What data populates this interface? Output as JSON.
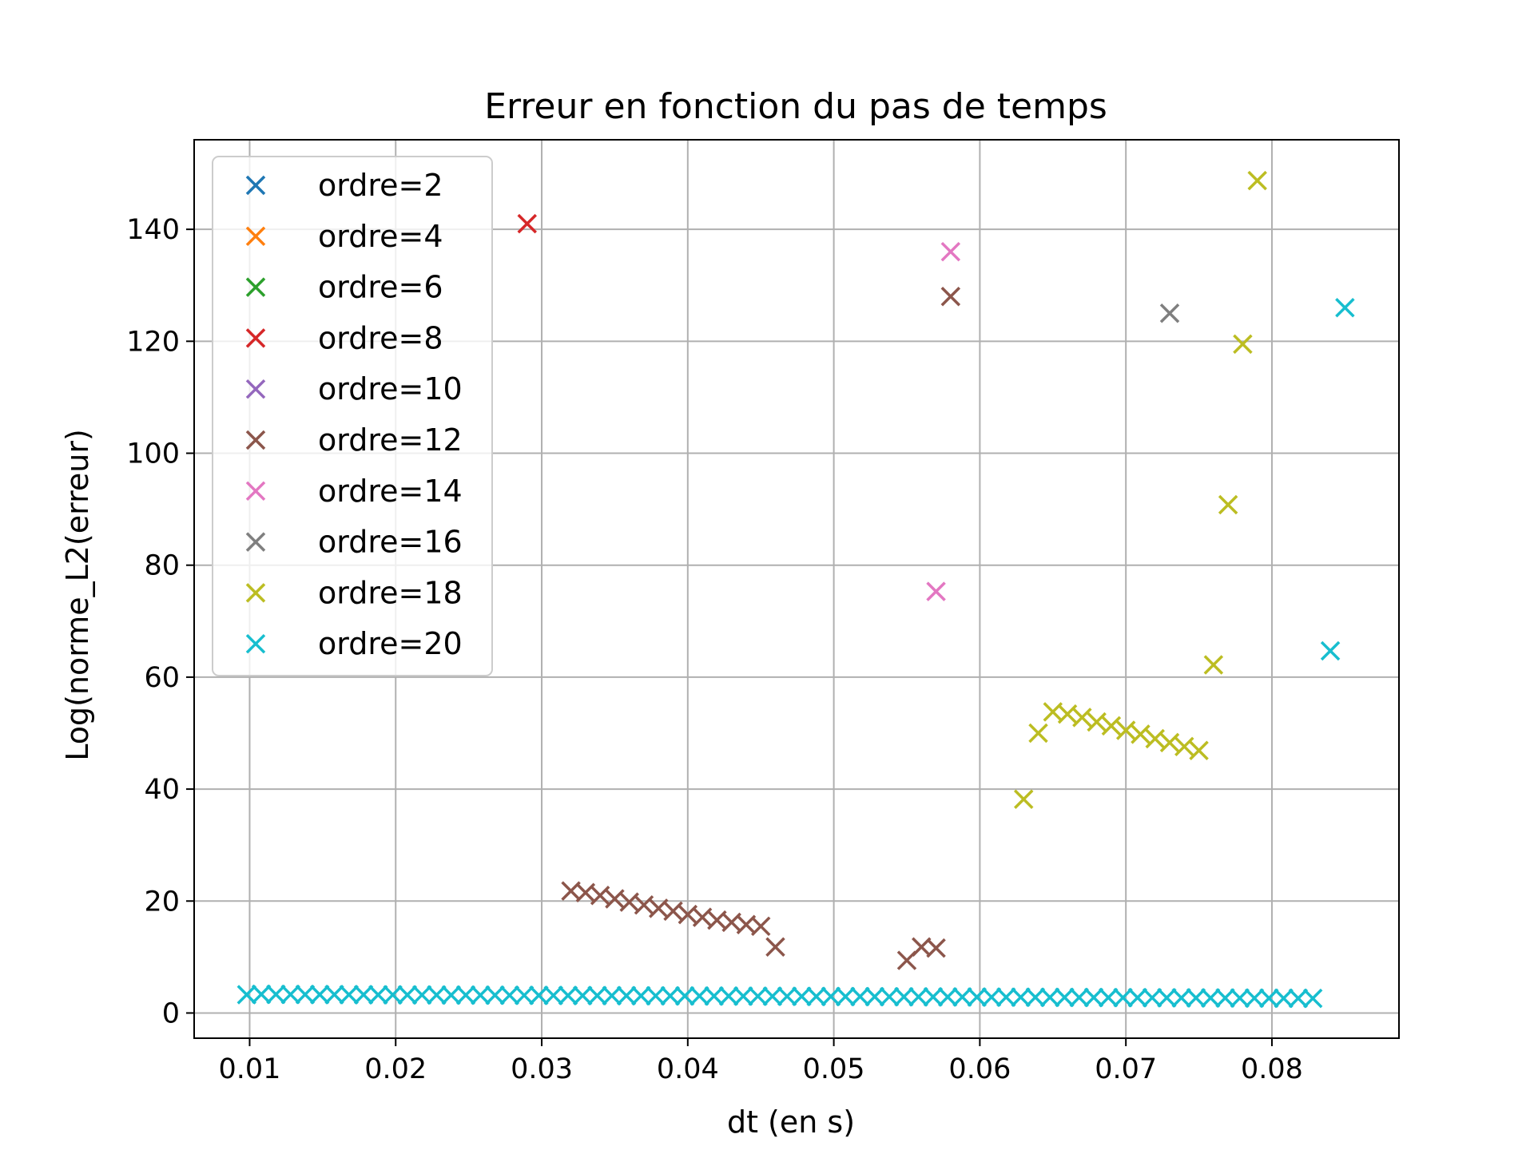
{
  "chart_data": {
    "type": "scatter",
    "title": "Erreur en fonction du pas de temps",
    "xlabel": "dt (en s)",
    "ylabel": "Log(norme_L2(erreur)",
    "xlim": [
      0.0062,
      0.0887
    ],
    "ylim": [
      -4.5,
      156
    ],
    "xticks": [
      {
        "value": 0.01,
        "label": "0.01"
      },
      {
        "value": 0.02,
        "label": "0.02"
      },
      {
        "value": 0.03,
        "label": "0.03"
      },
      {
        "value": 0.04,
        "label": "0.04"
      },
      {
        "value": 0.05,
        "label": "0.05"
      },
      {
        "value": 0.06,
        "label": "0.06"
      },
      {
        "value": 0.07,
        "label": "0.07"
      },
      {
        "value": 0.08,
        "label": "0.08"
      }
    ],
    "yticks": [
      {
        "value": 0,
        "label": "0"
      },
      {
        "value": 20,
        "label": "20"
      },
      {
        "value": 40,
        "label": "40"
      },
      {
        "value": 60,
        "label": "60"
      },
      {
        "value": 80,
        "label": "80"
      },
      {
        "value": 100,
        "label": "100"
      },
      {
        "value": 120,
        "label": "120"
      },
      {
        "value": 140,
        "label": "140"
      }
    ],
    "grid": true,
    "legend_position": "top-left",
    "marker": "x",
    "series": [
      {
        "name": "ordre=2",
        "color": "#1f77b4",
        "points": []
      },
      {
        "name": "ordre=4",
        "color": "#ff7f0e",
        "points": []
      },
      {
        "name": "ordre=6",
        "color": "#2ca02c",
        "points": []
      },
      {
        "name": "ordre=8",
        "color": "#d62728",
        "points": [
          [
            0.029,
            141
          ]
        ]
      },
      {
        "name": "ordre=10",
        "color": "#9467bd",
        "points": []
      },
      {
        "name": "ordre=12",
        "color": "#8c564b",
        "points": [
          [
            0.032,
            21.8
          ],
          [
            0.033,
            21.5
          ],
          [
            0.034,
            21.0
          ],
          [
            0.035,
            20.4
          ],
          [
            0.036,
            19.8
          ],
          [
            0.037,
            19.3
          ],
          [
            0.038,
            18.7
          ],
          [
            0.039,
            18.2
          ],
          [
            0.04,
            17.6
          ],
          [
            0.041,
            17.1
          ],
          [
            0.042,
            16.6
          ],
          [
            0.043,
            16.2
          ],
          [
            0.044,
            15.8
          ],
          [
            0.045,
            15.5
          ],
          [
            0.046,
            11.8
          ],
          [
            0.055,
            9.4
          ],
          [
            0.056,
            11.8
          ],
          [
            0.057,
            11.6
          ],
          [
            0.058,
            128
          ]
        ]
      },
      {
        "name": "ordre=14",
        "color": "#e377c2",
        "points": [
          [
            0.057,
            75.3
          ],
          [
            0.058,
            136
          ]
        ]
      },
      {
        "name": "ordre=16",
        "color": "#7f7f7f",
        "points": [
          [
            0.073,
            125
          ]
        ]
      },
      {
        "name": "ordre=18",
        "color": "#bcbd22",
        "points": [
          [
            0.063,
            38.2
          ],
          [
            0.064,
            50.0
          ],
          [
            0.065,
            53.8
          ],
          [
            0.066,
            53.4
          ],
          [
            0.067,
            52.8
          ],
          [
            0.068,
            52.0
          ],
          [
            0.069,
            51.3
          ],
          [
            0.07,
            50.5
          ],
          [
            0.071,
            49.8
          ],
          [
            0.072,
            49.0
          ],
          [
            0.073,
            48.3
          ],
          [
            0.074,
            47.6
          ],
          [
            0.075,
            46.9
          ],
          [
            0.076,
            62.2
          ],
          [
            0.077,
            90.8
          ],
          [
            0.078,
            119.5
          ],
          [
            0.079,
            148.7
          ]
        ]
      },
      {
        "name": "ordre=20",
        "color": "#17becf",
        "points": [
          [
            0.0098,
            3.28
          ],
          [
            0.0108,
            3.34
          ],
          [
            0.0118,
            3.33
          ],
          [
            0.0128,
            3.32
          ],
          [
            0.0138,
            3.31
          ],
          [
            0.0148,
            3.3
          ],
          [
            0.0158,
            3.29
          ],
          [
            0.0168,
            3.28
          ],
          [
            0.0178,
            3.27
          ],
          [
            0.0188,
            3.26
          ],
          [
            0.0198,
            3.25
          ],
          [
            0.0208,
            3.24
          ],
          [
            0.0218,
            3.23
          ],
          [
            0.0228,
            3.22
          ],
          [
            0.0238,
            3.21
          ],
          [
            0.0248,
            3.2
          ],
          [
            0.0258,
            3.19
          ],
          [
            0.0268,
            3.18
          ],
          [
            0.0278,
            3.17
          ],
          [
            0.0288,
            3.16
          ],
          [
            0.0298,
            3.15
          ],
          [
            0.0308,
            3.14
          ],
          [
            0.0318,
            3.13
          ],
          [
            0.0328,
            3.12
          ],
          [
            0.0338,
            3.11
          ],
          [
            0.0348,
            3.1
          ],
          [
            0.0358,
            3.09
          ],
          [
            0.0368,
            3.08
          ],
          [
            0.0378,
            3.07
          ],
          [
            0.0388,
            3.06
          ],
          [
            0.0398,
            3.05
          ],
          [
            0.0408,
            3.04
          ],
          [
            0.0418,
            3.03
          ],
          [
            0.0428,
            3.02
          ],
          [
            0.0438,
            3.01
          ],
          [
            0.0448,
            3.0
          ],
          [
            0.0458,
            2.99
          ],
          [
            0.0468,
            2.98
          ],
          [
            0.0478,
            2.97
          ],
          [
            0.0488,
            2.96
          ],
          [
            0.0498,
            2.95
          ],
          [
            0.0508,
            2.94
          ],
          [
            0.0518,
            2.93
          ],
          [
            0.0528,
            2.92
          ],
          [
            0.0538,
            2.91
          ],
          [
            0.0548,
            2.9
          ],
          [
            0.0558,
            2.89
          ],
          [
            0.0568,
            2.88
          ],
          [
            0.0578,
            2.87
          ],
          [
            0.0588,
            2.86
          ],
          [
            0.0598,
            2.85
          ],
          [
            0.0608,
            2.84
          ],
          [
            0.0618,
            2.83
          ],
          [
            0.0628,
            2.82
          ],
          [
            0.0638,
            2.81
          ],
          [
            0.0648,
            2.8
          ],
          [
            0.0658,
            2.79
          ],
          [
            0.0668,
            2.78
          ],
          [
            0.0678,
            2.77
          ],
          [
            0.0688,
            2.76
          ],
          [
            0.0698,
            2.75
          ],
          [
            0.0708,
            2.74
          ],
          [
            0.0718,
            2.73
          ],
          [
            0.0728,
            2.72
          ],
          [
            0.0738,
            2.71
          ],
          [
            0.0748,
            2.7
          ],
          [
            0.0758,
            2.69
          ],
          [
            0.0768,
            2.68
          ],
          [
            0.0778,
            2.67
          ],
          [
            0.0788,
            2.66
          ],
          [
            0.0798,
            2.65
          ],
          [
            0.0808,
            2.64
          ],
          [
            0.0818,
            2.63
          ],
          [
            0.0828,
            2.62
          ],
          [
            0.084,
            64.7
          ],
          [
            0.085,
            126
          ]
        ]
      }
    ]
  }
}
